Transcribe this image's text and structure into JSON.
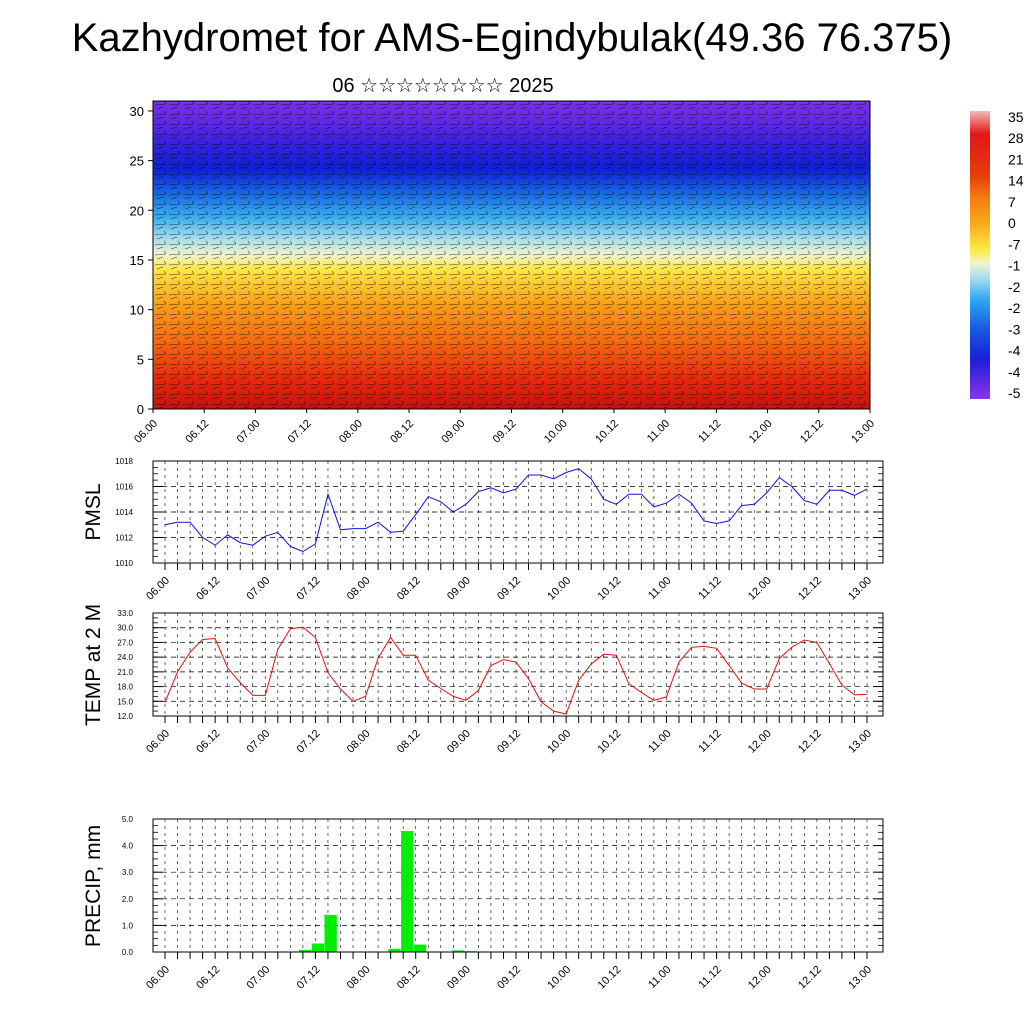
{
  "title": "Kazhydromet for AMS-Egindybulak(49.36 76.375)",
  "subtitle": "06 ☆☆☆☆☆☆☆☆ 2025",
  "colors": {
    "pmsl_line": "#1010e0",
    "temp_line": "#e01010",
    "precip_bar": "#00ee00"
  },
  "chart_data": [
    {
      "type": "heatmap",
      "name": "vertical cross-section",
      "y_ticks": [
        "0",
        "5",
        "10",
        "15",
        "20",
        "25",
        "30"
      ],
      "ylim": [
        0,
        31
      ],
      "x_ticks": [
        "06.00",
        "06.12",
        "07.00",
        "07.12",
        "08.00",
        "08.12",
        "09.00",
        "09.12",
        "10.00",
        "10.12",
        "11.00",
        "11.12",
        "12.00",
        "12.12",
        "13.00"
      ],
      "colorbar_labels": [
        "35",
        "28",
        "21",
        "14",
        "7",
        "0",
        "-7",
        "-1",
        "-2",
        "-2",
        "-3",
        "-4",
        "-4",
        "-5"
      ]
    },
    {
      "type": "line",
      "ylabel": "PMSL",
      "ylim": [
        1010,
        1018
      ],
      "y_ticks": [
        "1018",
        "1016",
        "1014",
        "1012",
        "1010"
      ],
      "x_ticks": [
        "06.00",
        "06.12",
        "07.00",
        "07.12",
        "08.00",
        "08.12",
        "09.00",
        "09.12",
        "10.00",
        "10.12",
        "11.00",
        "11.12",
        "12.00",
        "12.12",
        "13.00"
      ],
      "values": [
        1013.0,
        1013.2,
        1013.2,
        1012.0,
        1011.4,
        1012.2,
        1011.6,
        1011.4,
        1012.1,
        1012.4,
        1011.3,
        1010.9,
        1011.5,
        1015.4,
        1012.6,
        1012.7,
        1012.7,
        1013.2,
        1012.4,
        1012.5,
        1013.8,
        1015.2,
        1014.8,
        1014.0,
        1014.6,
        1015.6,
        1015.9,
        1015.5,
        1015.8,
        1016.9,
        1016.9,
        1016.6,
        1017.1,
        1017.4,
        1016.6,
        1015.0,
        1014.6,
        1015.4,
        1015.4,
        1014.4,
        1014.7,
        1015.4,
        1014.7,
        1013.3,
        1013.1,
        1013.3,
        1014.5,
        1014.6,
        1015.5,
        1016.7,
        1016.0,
        1014.9,
        1014.6,
        1015.7,
        1015.7,
        1015.3,
        1015.8
      ]
    },
    {
      "type": "line",
      "ylabel": "TEMP at 2 M",
      "ylim": [
        12,
        33
      ],
      "y_ticks": [
        "33.0",
        "30.0",
        "27.0",
        "24.0",
        "21.0",
        "18.0",
        "15.0",
        "12.0"
      ],
      "x_ticks": [
        "06.00",
        "06.12",
        "07.00",
        "07.12",
        "08.00",
        "08.12",
        "09.00",
        "09.12",
        "10.00",
        "10.12",
        "11.00",
        "11.12",
        "12.00",
        "12.12",
        "13.00"
      ],
      "values": [
        14.8,
        21.0,
        25.0,
        27.6,
        27.8,
        21.8,
        18.8,
        16.2,
        16.2,
        25.6,
        29.8,
        30.1,
        28.0,
        20.8,
        17.5,
        15.0,
        16.0,
        23.8,
        28.0,
        24.4,
        24.4,
        19.3,
        17.6,
        16.0,
        15.2,
        17.2,
        22.3,
        23.5,
        23.0,
        19.6,
        14.9,
        13.0,
        12.4,
        19.3,
        22.6,
        24.6,
        24.4,
        18.6,
        16.8,
        15.2,
        15.9,
        23.0,
        26.0,
        26.2,
        25.8,
        22.3,
        18.7,
        17.5,
        17.5,
        23.7,
        26.0,
        27.5,
        27.0,
        22.7,
        18.3,
        16.3,
        16.4
      ]
    },
    {
      "type": "bar",
      "ylabel": "PRECIP, mm",
      "ylim": [
        0,
        5
      ],
      "y_ticks": [
        "5.0",
        "4.0",
        "3.0",
        "2.0",
        "1.0",
        "0.0"
      ],
      "x_ticks": [
        "06.00",
        "06.12",
        "07.00",
        "07.12",
        "08.00",
        "08.12",
        "09.00",
        "09.12",
        "10.00",
        "10.12",
        "11.00",
        "11.12",
        "12.00",
        "12.12",
        "13.00"
      ],
      "values": [
        0,
        0,
        0,
        0,
        0,
        0,
        0,
        0,
        0,
        0,
        0,
        0.08,
        0.32,
        1.4,
        0,
        0,
        0,
        0,
        0.12,
        4.55,
        0.28,
        0,
        0,
        0.06,
        0.03,
        0,
        0,
        0,
        0,
        0,
        0,
        0,
        0,
        0,
        0,
        0,
        0,
        0,
        0,
        0,
        0,
        0,
        0,
        0,
        0,
        0,
        0,
        0,
        0,
        0,
        0,
        0,
        0,
        0,
        0,
        0
      ]
    }
  ]
}
